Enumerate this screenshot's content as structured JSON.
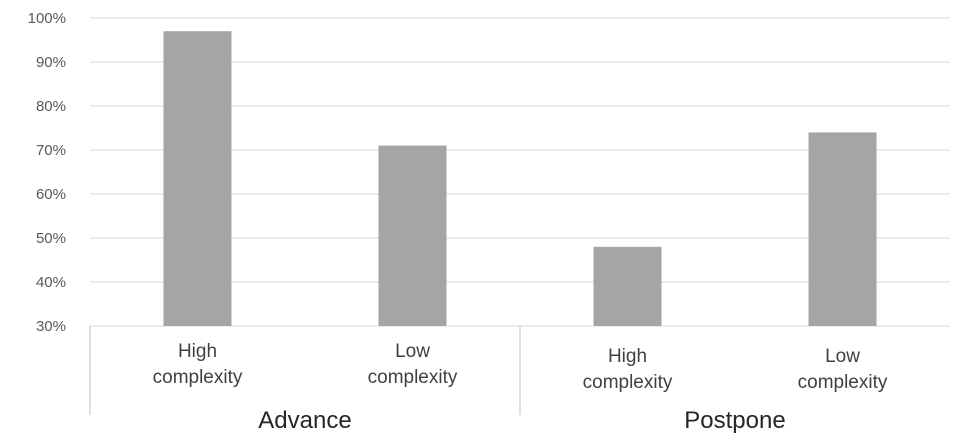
{
  "chart_data": {
    "type": "bar",
    "title": "",
    "xlabel": "",
    "ylabel": "",
    "ylim": [
      0.3,
      1.0
    ],
    "yticks": [
      "30%",
      "40%",
      "50%",
      "60%",
      "70%",
      "80%",
      "90%",
      "100%"
    ],
    "grid": true,
    "legend": "none",
    "bar_color": "#a5a5a5",
    "groups": [
      {
        "name": "Advance",
        "categories": [
          {
            "label": "High complexity",
            "value": 0.97
          },
          {
            "label": "Low complexity",
            "value": 0.71
          }
        ]
      },
      {
        "name": "Postpone",
        "categories": [
          {
            "label": "High complexity",
            "value": 0.48
          },
          {
            "label": "Low complexity",
            "value": 0.74
          }
        ]
      }
    ]
  }
}
